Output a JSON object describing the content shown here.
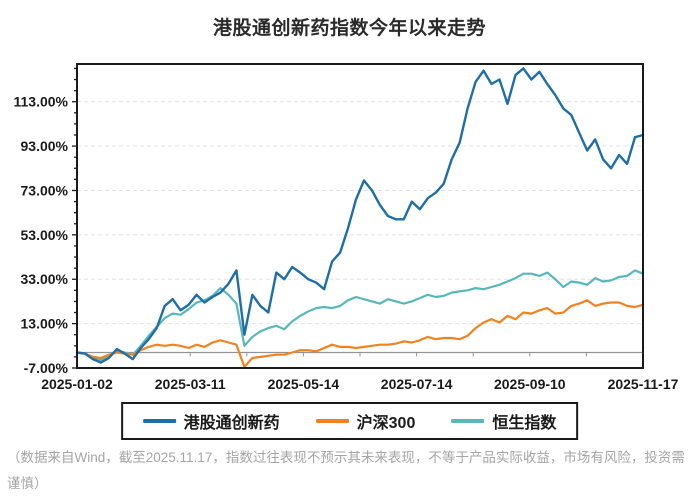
{
  "header": {
    "title": "港股通创新药指数今年以来走势"
  },
  "footer": {
    "disclaimer": "（数据来自Wind，截至2025.11.17，指数过往表现不预示其未来表现，不等于产品实际收益，市场有风险，投资需谨慎）"
  },
  "colors": {
    "background": "#ffffff",
    "axis": "#1a1a1a",
    "grid": "#e3e3e3",
    "zero_line": "#949494",
    "title_text": "#2b2b2b",
    "tick_text": "#1a1a1a",
    "disclaimer_text": "#a5a5a5"
  },
  "chart_data": {
    "type": "line",
    "title": "港股通创新药指数今年以来走势",
    "xlabel": "",
    "ylabel": "",
    "x_start": "2025-01-02",
    "x_end": "2025-11-17",
    "x_tick_labels": [
      "2025-01-02",
      "2025-03-11",
      "2025-05-14",
      "2025-07-14",
      "2025-09-10",
      "2025-11-17"
    ],
    "y_tick_labels": [
      "113.00%",
      "93.00%",
      "73.00%",
      "53.00%",
      "33.00%",
      "13.00%",
      "-7.00%"
    ],
    "y_ticks": [
      113,
      93,
      73,
      53,
      33,
      13,
      -7
    ],
    "ylim": [
      -7,
      130
    ],
    "grid": "horizontal dashed at major y ticks",
    "zero_baseline": 0,
    "legend_position": "bottom center, boxed",
    "x_sampling": "values evenly spaced from 2025-01-02 to 2025-11-17 (percent change since year start)",
    "series": [
      {
        "name": "港股通创新药",
        "color": "#1f6ea7",
        "width": 2.4,
        "values": [
          0,
          -0.5,
          -3,
          -4.5,
          -2.5,
          1.5,
          -0.5,
          -3,
          2,
          6,
          11,
          21,
          24,
          19,
          21.5,
          26,
          22.5,
          25,
          27,
          31,
          37,
          8,
          26,
          21,
          18,
          36,
          33,
          38.5,
          36,
          33,
          31.5,
          28.5,
          41,
          45,
          56,
          69,
          77.5,
          73,
          66.5,
          61.5,
          60,
          60,
          68,
          64.5,
          69.5,
          72,
          76,
          87,
          94.5,
          110,
          122,
          127,
          121,
          123,
          112,
          125,
          128,
          123,
          126.5,
          121,
          116,
          110,
          107,
          99,
          91,
          96,
          87,
          83,
          89,
          85,
          97,
          98
        ]
      },
      {
        "name": "沪深300",
        "color": "#f28221",
        "width": 2.2,
        "values": [
          0,
          -0.5,
          -2,
          -2.5,
          -1,
          0,
          -0.5,
          -1,
          1,
          2.5,
          3.5,
          3,
          3.5,
          3,
          2,
          3.5,
          2.5,
          4.5,
          5.5,
          4.5,
          3.5,
          -6.5,
          -2.5,
          -2,
          -1.5,
          -1,
          -1,
          0,
          1,
          1,
          0.5,
          2,
          3.5,
          2.5,
          2.5,
          2,
          2.5,
          3,
          3.5,
          3.5,
          4,
          5,
          4.5,
          5.5,
          7,
          6,
          6.5,
          6.5,
          6,
          7.5,
          11,
          13.5,
          15,
          13.5,
          16.5,
          15,
          18,
          17.5,
          19,
          20,
          17.5,
          18,
          21,
          22,
          23.5,
          21,
          22,
          22.5,
          22.5,
          21,
          20.5,
          21.5
        ]
      },
      {
        "name": "恒生指数",
        "color": "#58b7ba",
        "width": 2.2,
        "values": [
          0,
          -0.5,
          -2.5,
          -3.5,
          -1.5,
          0.5,
          0,
          -1,
          3,
          7.5,
          11.5,
          15.5,
          17.5,
          17,
          19.5,
          22.5,
          23.5,
          25.5,
          29,
          26,
          22,
          3,
          7,
          9.5,
          11,
          12,
          10.5,
          14,
          16.5,
          18.5,
          20,
          20.5,
          20,
          21,
          23.5,
          25,
          24,
          23,
          22,
          24,
          23,
          22,
          23,
          24.5,
          26,
          25,
          25.5,
          27,
          27.5,
          28,
          29,
          28.5,
          29.5,
          30.5,
          32,
          33.5,
          35.5,
          35.5,
          34.5,
          36,
          33,
          29.5,
          32,
          31.5,
          30.5,
          33.5,
          32,
          32.5,
          34,
          34.5,
          37,
          35.5
        ]
      }
    ]
  }
}
